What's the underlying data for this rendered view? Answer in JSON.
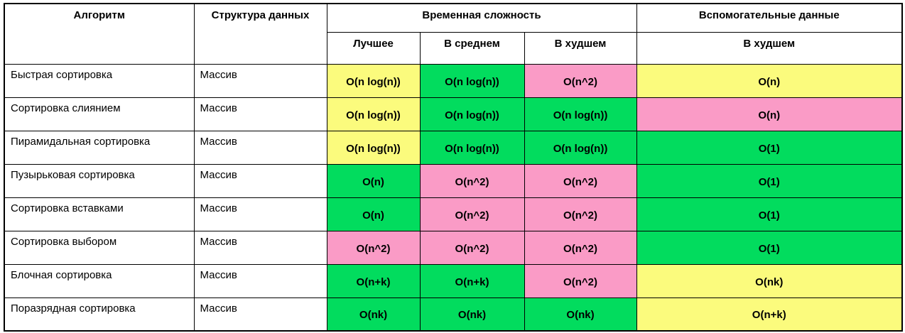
{
  "colors": {
    "green": "#02DC5E",
    "pink": "#FA9BC6",
    "yellow": "#FBFB7D",
    "border": "#000000",
    "background": "#FFFFFF"
  },
  "header": {
    "algorithm": "Алгоритм",
    "structure": "Структура данных",
    "time_complexity": "Временная сложность",
    "aux_data": "Вспомогательные данные",
    "best": "Лучшее",
    "average": "В среднем",
    "worst": "В худшем",
    "aux_worst": "В худшем"
  },
  "rows": [
    {
      "name": "Быстрая сортировка",
      "structure": "Массив",
      "best": {
        "text": "O(n log(n))",
        "color": "yellow"
      },
      "avg": {
        "text": "O(n log(n))",
        "color": "green"
      },
      "worst": {
        "text": "O(n^2)",
        "color": "pink"
      },
      "aux": {
        "text": "O(n)",
        "color": "yellow"
      }
    },
    {
      "name": "Сортировка слиянием",
      "structure": "Массив",
      "best": {
        "text": "O(n log(n))",
        "color": "yellow"
      },
      "avg": {
        "text": "O(n log(n))",
        "color": "green"
      },
      "worst": {
        "text": "O(n log(n))",
        "color": "green"
      },
      "aux": {
        "text": "O(n)",
        "color": "pink"
      }
    },
    {
      "name": "Пирамидальная сортировка",
      "structure": "Массив",
      "best": {
        "text": "O(n log(n))",
        "color": "yellow"
      },
      "avg": {
        "text": "O(n log(n))",
        "color": "green"
      },
      "worst": {
        "text": "O(n log(n))",
        "color": "green"
      },
      "aux": {
        "text": "O(1)",
        "color": "green"
      }
    },
    {
      "name": "Пузырьковая сортировка",
      "structure": "Массив",
      "best": {
        "text": "O(n)",
        "color": "green"
      },
      "avg": {
        "text": "O(n^2)",
        "color": "pink"
      },
      "worst": {
        "text": "O(n^2)",
        "color": "pink"
      },
      "aux": {
        "text": "O(1)",
        "color": "green"
      }
    },
    {
      "name": "Сортировка вставками",
      "structure": "Массив",
      "best": {
        "text": "O(n)",
        "color": "green"
      },
      "avg": {
        "text": "O(n^2)",
        "color": "pink"
      },
      "worst": {
        "text": "O(n^2)",
        "color": "pink"
      },
      "aux": {
        "text": "O(1)",
        "color": "green"
      }
    },
    {
      "name": "Сортировка выбором",
      "structure": "Массив",
      "best": {
        "text": "O(n^2)",
        "color": "pink"
      },
      "avg": {
        "text": "O(n^2)",
        "color": "pink"
      },
      "worst": {
        "text": "O(n^2)",
        "color": "pink"
      },
      "aux": {
        "text": "O(1)",
        "color": "green"
      }
    },
    {
      "name": "Блочная сортировка",
      "structure": "Массив",
      "best": {
        "text": "O(n+k)",
        "color": "green"
      },
      "avg": {
        "text": "O(n+k)",
        "color": "green"
      },
      "worst": {
        "text": "O(n^2)",
        "color": "pink"
      },
      "aux": {
        "text": "O(nk)",
        "color": "yellow"
      }
    },
    {
      "name": "Поразрядная сортировка",
      "structure": "Массив",
      "best": {
        "text": "O(nk)",
        "color": "green"
      },
      "avg": {
        "text": "O(nk)",
        "color": "green"
      },
      "worst": {
        "text": "O(nk)",
        "color": "green"
      },
      "aux": {
        "text": "O(n+k)",
        "color": "yellow"
      }
    }
  ],
  "chart_data": {
    "type": "table",
    "title": "",
    "columns": [
      "Алгоритм",
      "Структура данных",
      "Временная сложность — Лучшее",
      "Временная сложность — В среднем",
      "Временная сложность — В худшем",
      "Вспомогательные данные — В худшем"
    ],
    "cells": [
      [
        "Быстрая сортировка",
        "Массив",
        "O(n log(n))",
        "O(n log(n))",
        "O(n^2)",
        "O(n)"
      ],
      [
        "Сортировка слиянием",
        "Массив",
        "O(n log(n))",
        "O(n log(n))",
        "O(n log(n))",
        "O(n)"
      ],
      [
        "Пирамидальная сортировка",
        "Массив",
        "O(n log(n))",
        "O(n log(n))",
        "O(n log(n))",
        "O(1)"
      ],
      [
        "Пузырьковая сортировка",
        "Массив",
        "O(n)",
        "O(n^2)",
        "O(n^2)",
        "O(1)"
      ],
      [
        "Сортировка вставками",
        "Массив",
        "O(n)",
        "O(n^2)",
        "O(n^2)",
        "O(1)"
      ],
      [
        "Сортировка выбором",
        "Массив",
        "O(n^2)",
        "O(n^2)",
        "O(n^2)",
        "O(1)"
      ],
      [
        "Блочная сортировка",
        "Массив",
        "O(n+k)",
        "O(n+k)",
        "O(n^2)",
        "O(nk)"
      ],
      [
        "Поразрядная сортировка",
        "Массив",
        "O(nk)",
        "O(nk)",
        "O(nk)",
        "O(n+k)"
      ]
    ],
    "cell_colors": [
      [
        "white",
        "white",
        "yellow",
        "green",
        "pink",
        "yellow"
      ],
      [
        "white",
        "white",
        "yellow",
        "green",
        "green",
        "pink"
      ],
      [
        "white",
        "white",
        "yellow",
        "green",
        "green",
        "green"
      ],
      [
        "white",
        "white",
        "green",
        "pink",
        "pink",
        "green"
      ],
      [
        "white",
        "white",
        "green",
        "pink",
        "pink",
        "green"
      ],
      [
        "white",
        "white",
        "pink",
        "pink",
        "pink",
        "green"
      ],
      [
        "white",
        "white",
        "green",
        "green",
        "pink",
        "yellow"
      ],
      [
        "white",
        "white",
        "green",
        "green",
        "green",
        "yellow"
      ]
    ],
    "legend_position": "none",
    "grid": true
  }
}
